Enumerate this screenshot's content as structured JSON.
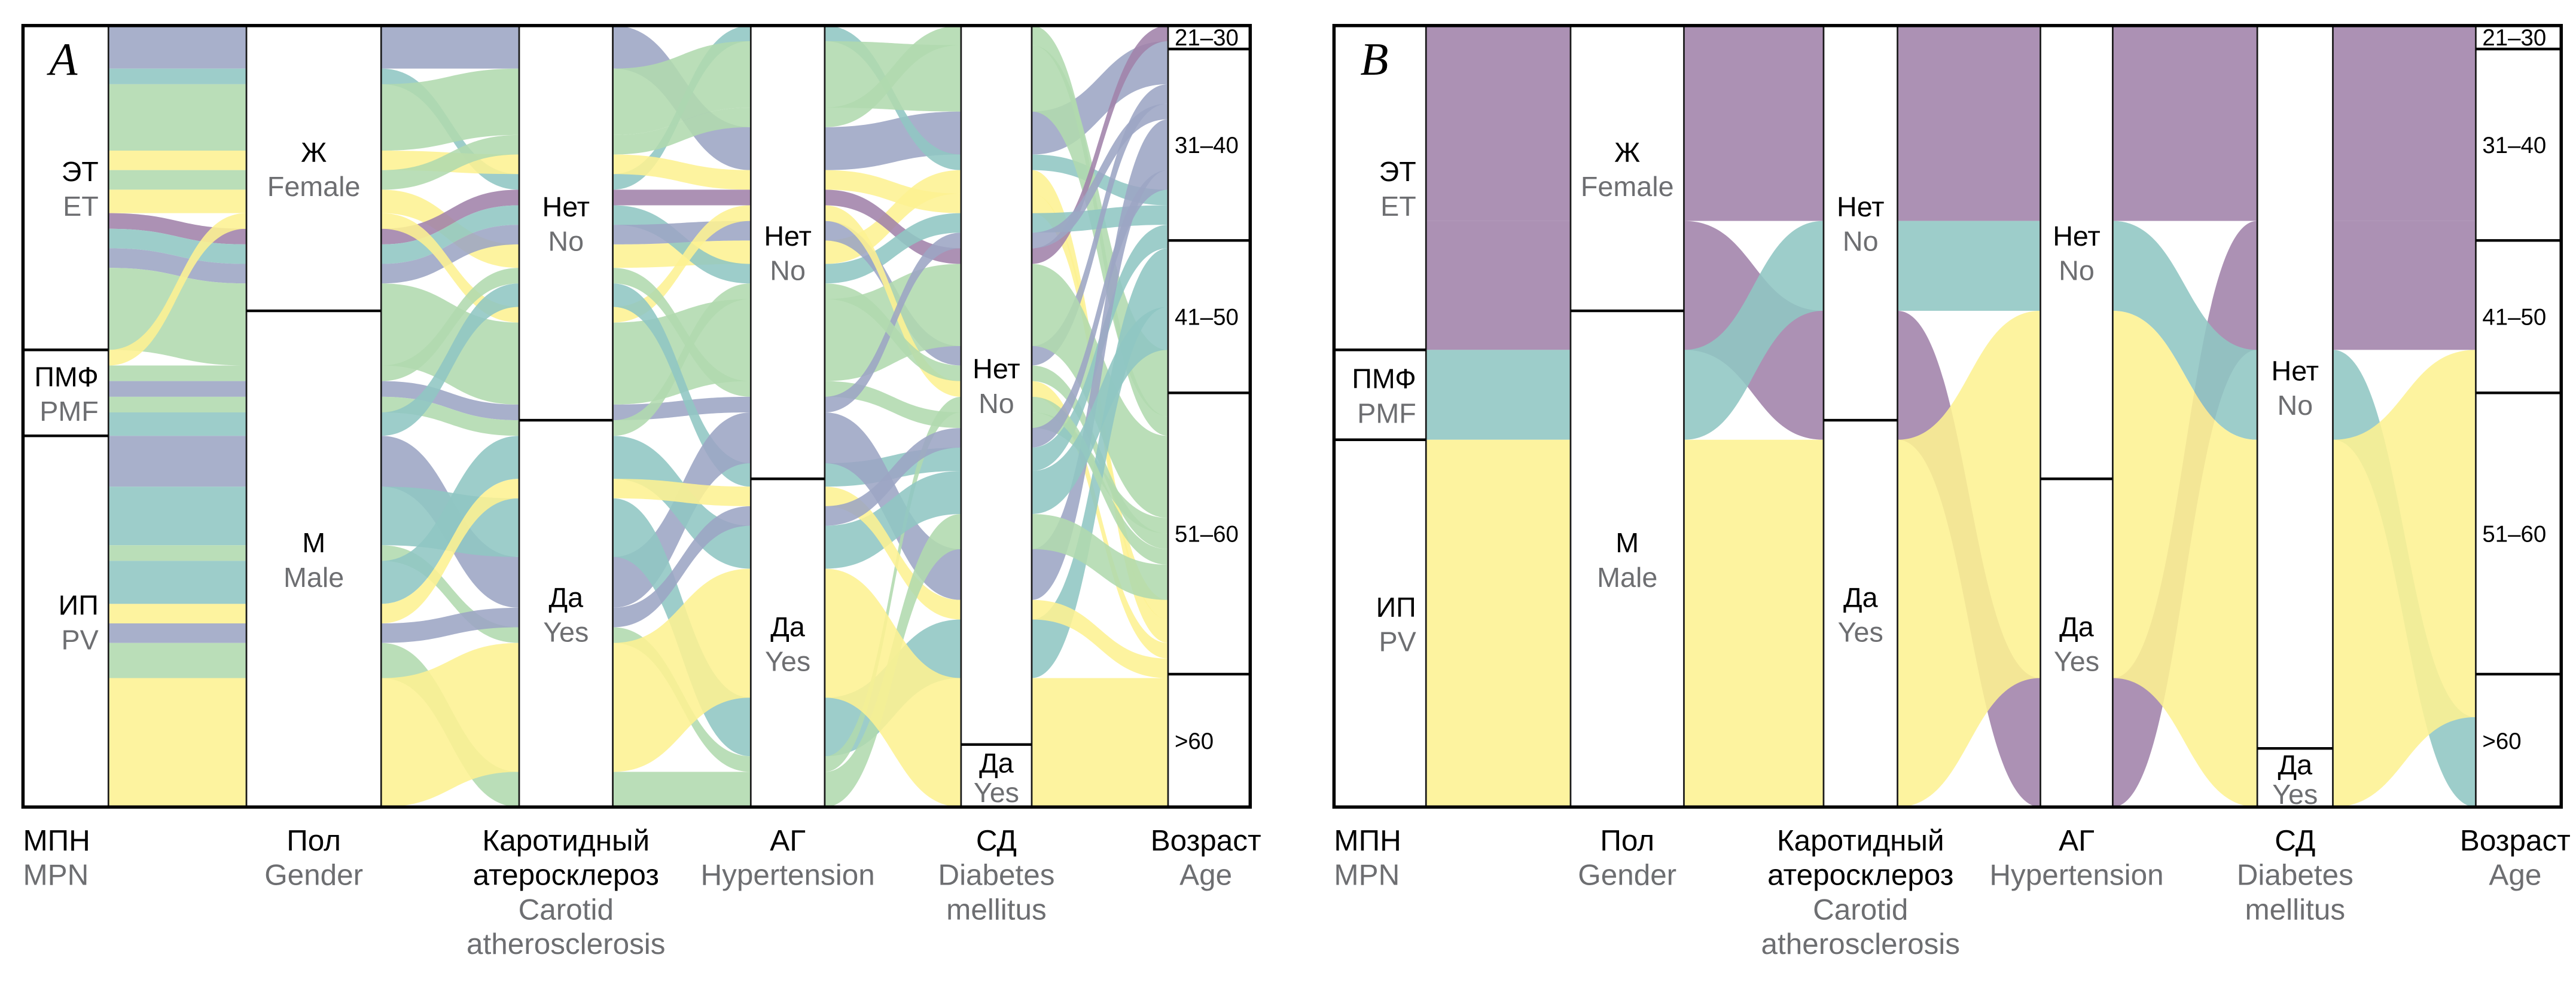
{
  "chart_data": {
    "type": "alluvial",
    "colors": {
      "slate": "#9ca5c4",
      "teal": "#8fc6c3",
      "green": "#b1d9ae",
      "yellow": "#fdf192",
      "purple": "#a182aa",
      "axis_label_ru": "#000000",
      "axis_label_en": "#6d6e71"
    },
    "axes": [
      {
        "key": "mpn",
        "label_ru": "МПН",
        "label_en": "MPN",
        "categories": [
          {
            "ru": "ЭТ",
            "en": "ET"
          },
          {
            "ru": "ПМФ",
            "en": "PMF"
          },
          {
            "ru": "ИП",
            "en": "PV"
          }
        ]
      },
      {
        "key": "gender",
        "label_ru": "Пол",
        "label_en": "Gender",
        "categories": [
          {
            "ru": "Ж",
            "en": "Female"
          },
          {
            "ru": "М",
            "en": "Male"
          }
        ]
      },
      {
        "key": "carotid",
        "label_ru": "Каротидный атеросклероз",
        "label_ru_lines": [
          "Каротидный",
          "атеросклероз"
        ],
        "label_en": "Carotid atherosclerosis",
        "label_en_lines": [
          "Carotid",
          "atherosclerosis"
        ],
        "categories": [
          {
            "ru": "Нет",
            "en": "No"
          },
          {
            "ru": "Да",
            "en": "Yes"
          }
        ]
      },
      {
        "key": "hypertension",
        "label_ru": "АГ",
        "label_en": "Hypertension",
        "categories": [
          {
            "ru": "Нет",
            "en": "No"
          },
          {
            "ru": "Да",
            "en": "Yes"
          }
        ]
      },
      {
        "key": "diabetes",
        "label_ru": "СД",
        "label_en": "Diabetes mellitus",
        "label_en_lines": [
          "Diabetes",
          "mellitus"
        ],
        "categories": [
          {
            "ru": "Нет",
            "en": "No"
          },
          {
            "ru": "Да",
            "en": "Yes"
          }
        ]
      },
      {
        "key": "age",
        "label_ru": "Возраст",
        "label_en": "Age",
        "categories": [
          {
            "ru": "21–30"
          },
          {
            "ru": "31–40"
          },
          {
            "ru": "41–50"
          },
          {
            "ru": "51–60"
          },
          {
            "ru": ">60"
          }
        ]
      }
    ],
    "panels": [
      {
        "id": "A",
        "letter": "A",
        "color_by": "age",
        "category_shares": {
          "mpn": [
            0.415,
            0.11,
            0.475
          ],
          "gender": [
            0.365,
            0.635
          ],
          "carotid": [
            0.505,
            0.495
          ],
          "hypertension": [
            0.58,
            0.42
          ],
          "diabetes": [
            0.92,
            0.08
          ],
          "age": [
            0.03,
            0.245,
            0.195,
            0.36,
            0.17
          ]
        },
        "age_color_map": {
          "21–30": "purple",
          "31–40": "slate",
          "41–50": "teal",
          "51–60": "green",
          ">60": "yellow"
        }
      },
      {
        "id": "B",
        "letter": "B",
        "color_by": "age_binary",
        "category_shares": {
          "mpn": [
            0.415,
            0.115,
            0.47
          ],
          "gender": [
            0.365,
            0.635
          ],
          "carotid": [
            0.505,
            0.495
          ],
          "hypertension": [
            0.58,
            0.42
          ],
          "diabetes": [
            0.925,
            0.075
          ],
          "age": [
            0.03,
            0.245,
            0.195,
            0.36,
            0.17
          ]
        },
        "age_color_map": {
          "purple": "purple",
          "teal": "teal",
          "yellow": "yellow"
        }
      }
    ],
    "panel_A_strata_mpn_to_gender": [
      {
        "color": "slate",
        "from": 0,
        "to": 0.055,
        "to_cat": "Female"
      },
      {
        "color": "teal",
        "from": 0.055,
        "to": 0.075,
        "to_cat": "Female"
      },
      {
        "color": "green",
        "from": 0.075,
        "to": 0.16,
        "to_cat": "Female"
      },
      {
        "color": "yellow",
        "from": 0.16,
        "to": 0.185,
        "to_cat": "Female"
      },
      {
        "color": "green",
        "from": 0.185,
        "to": 0.21,
        "to_cat": "Female"
      },
      {
        "color": "yellow",
        "from": 0.21,
        "to": 0.24,
        "to_cat": "Female"
      },
      {
        "color": "purple",
        "from": 0.24,
        "to": 0.26,
        "to_cat": "Male"
      },
      {
        "color": "teal",
        "from": 0.26,
        "to": 0.285,
        "to_cat": "Male"
      },
      {
        "color": "slate",
        "from": 0.285,
        "to": 0.31,
        "to_cat": "Male"
      },
      {
        "color": "green",
        "from": 0.31,
        "to": 0.415,
        "to_cat": "Male"
      },
      {
        "color": "yellow",
        "from": 0.415,
        "to": 0.435,
        "to_cat": "Female"
      },
      {
        "color": "green",
        "from": 0.435,
        "to": 0.455,
        "to_cat": "Male"
      },
      {
        "color": "slate",
        "from": 0.455,
        "to": 0.475,
        "to_cat": "Male"
      },
      {
        "color": "green",
        "from": 0.475,
        "to": 0.495,
        "to_cat": "Male"
      },
      {
        "color": "teal",
        "from": 0.495,
        "to": 0.525,
        "to_cat": "Male"
      },
      {
        "color": "slate",
        "from": 0.525,
        "to": 0.59,
        "to_cat": "Male"
      },
      {
        "color": "teal",
        "from": 0.59,
        "to": 0.665,
        "to_cat": "Male"
      },
      {
        "color": "green",
        "from": 0.665,
        "to": 0.685,
        "to_cat": "Male"
      },
      {
        "color": "teal",
        "from": 0.685,
        "to": 0.74,
        "to_cat": "Male"
      },
      {
        "color": "yellow",
        "from": 0.74,
        "to": 0.765,
        "to_cat": "Male"
      },
      {
        "color": "slate",
        "from": 0.765,
        "to": 0.79,
        "to_cat": "Male"
      },
      {
        "color": "green",
        "from": 0.79,
        "to": 0.835,
        "to_cat": "Male"
      },
      {
        "color": "yellow",
        "from": 0.835,
        "to": 1.0,
        "to_cat": "Male"
      }
    ],
    "panel_B_strata_mpn_to_gender": [
      {
        "color": "purple",
        "from": 0,
        "to": 0.25,
        "to_cat": "Female"
      },
      {
        "color": "purple",
        "from": 0.25,
        "to": 0.415,
        "to_cat": "Male"
      },
      {
        "color": "teal",
        "from": 0.415,
        "to": 0.53,
        "to_cat": "Male"
      },
      {
        "color": "yellow",
        "from": 0.53,
        "to": 1.0,
        "to_cat": "Male"
      }
    ],
    "title": "",
    "xlabel": "",
    "ylabel": ""
  }
}
